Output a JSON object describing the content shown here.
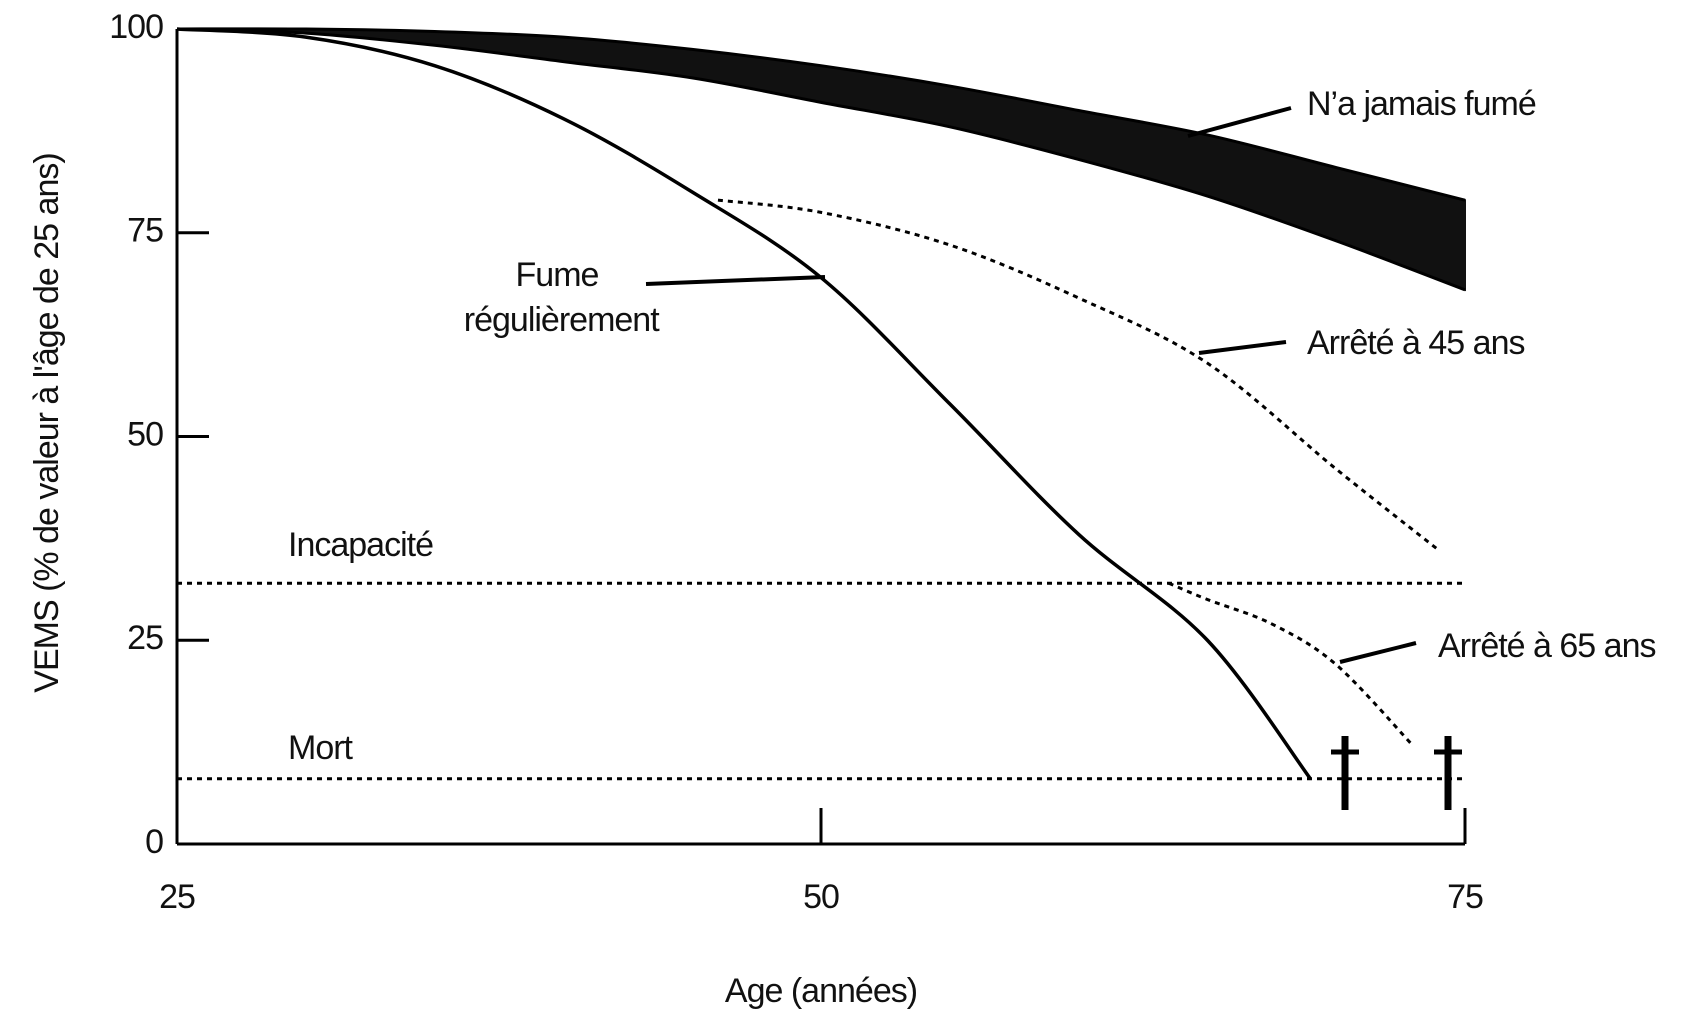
{
  "chart_data": {
    "type": "line",
    "xlabel": "Age (années)",
    "ylabel": "VEMS (% de valeur à l'âge de 25 ans)",
    "xlim": [
      25,
      75
    ],
    "ylim": [
      0,
      100
    ],
    "xticks": [
      25,
      50,
      75
    ],
    "yticks": [
      0,
      25,
      50,
      75,
      100
    ],
    "band": {
      "name": "N’a jamais fumé",
      "color": "#111111",
      "x": [
        25,
        30,
        35,
        40,
        45,
        50,
        55,
        60,
        65,
        70,
        75
      ],
      "upper": [
        100,
        100,
        99.7,
        99,
        97.5,
        95.5,
        93,
        90,
        87,
        83,
        79
      ],
      "lower": [
        100,
        99.5,
        98,
        96,
        94,
        91,
        88,
        84,
        79.5,
        74,
        68
      ]
    },
    "series": [
      {
        "name": "Fume régulièrement",
        "color": "#000000",
        "dashed": false,
        "x": [
          25,
          30,
          35,
          40,
          45,
          50,
          55,
          60,
          65,
          69
        ],
        "values": [
          100,
          99,
          95.5,
          89,
          80,
          69.5,
          54,
          38,
          25,
          8
        ]
      },
      {
        "name": "Arrêté à 45 ans",
        "color": "#000000",
        "dashed": true,
        "x": [
          46,
          50,
          55,
          60,
          65,
          70,
          74
        ],
        "values": [
          79,
          77.5,
          73.5,
          67,
          59,
          46,
          36
        ]
      },
      {
        "name": "Arrêté à 65 ans",
        "color": "#000000",
        "dashed": true,
        "x": [
          63.5,
          65,
          67.5,
          70,
          73
        ],
        "values": [
          32,
          30,
          27,
          22,
          12
        ]
      }
    ],
    "reference_lines": [
      {
        "label": "Incapacité",
        "value": 32
      },
      {
        "label": "Mort",
        "value": 8
      }
    ]
  }
}
